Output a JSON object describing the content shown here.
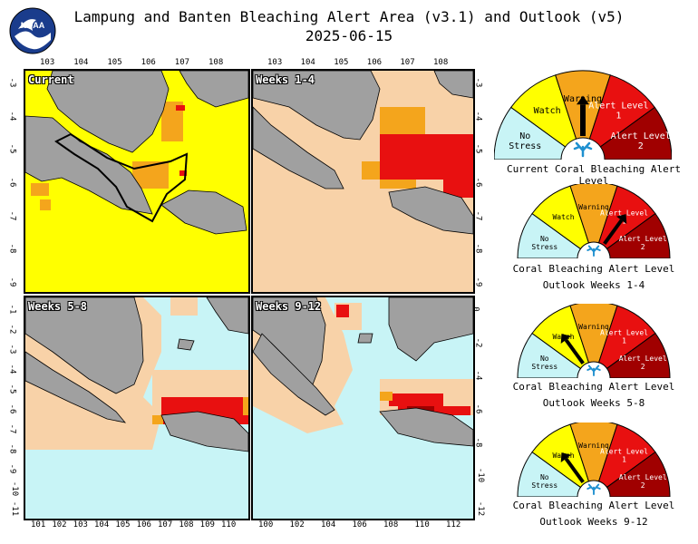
{
  "title_line1": "Lampung and Banten Bleaching Alert Area (v3.1) and Outlook (v5)",
  "title_line2": "2025-06-15",
  "logo_text": "NOAA",
  "colors": {
    "no_stress": "#c8f4f6",
    "watch": "#ffff00",
    "warning": "#f4a51c",
    "alert1": "#e81010",
    "alert2": "#a00000",
    "light_orange": "#f8d2a8",
    "land": "#a0a0a0",
    "coral_icon": "#1e90d0"
  },
  "panels": [
    {
      "id": "current",
      "label": "Current",
      "top_ticks": [
        "103",
        "104",
        "105",
        "106",
        "107",
        "108"
      ],
      "left_ticks": [
        "-3",
        "-4",
        "-5",
        "-6",
        "-7",
        "-8",
        "-9"
      ]
    },
    {
      "id": "weeks1-4",
      "label": "Weeks 1-4",
      "top_ticks": [
        "103",
        "104",
        "105",
        "106",
        "107",
        "108"
      ],
      "right_ticks": [
        "-3",
        "-4",
        "-5",
        "-6",
        "-7",
        "-8",
        "-9"
      ]
    },
    {
      "id": "weeks5-8",
      "label": "Weeks 5-8",
      "bottom_ticks": [
        "101",
        "102",
        "103",
        "104",
        "105",
        "106",
        "107",
        "108",
        "109",
        "110"
      ],
      "left_ticks": [
        "-1",
        "-2",
        "-3",
        "-4",
        "-5",
        "-6",
        "-7",
        "-8",
        "-9",
        "-10",
        "-11"
      ]
    },
    {
      "id": "weeks9-12",
      "label": "Weeks 9-12",
      "bottom_ticks": [
        "100",
        "102",
        "104",
        "106",
        "108",
        "110",
        "112"
      ],
      "right_ticks": [
        "0",
        "-2",
        "-4",
        "-6",
        "-8",
        "-10",
        "-12"
      ]
    }
  ],
  "gauge_levels": [
    "No Stress",
    "Watch",
    "Warning",
    "Alert Level 1",
    "Alert Level 2"
  ],
  "gauges": [
    {
      "caption1": "Current Coral Bleaching Alert Level",
      "caption2": "",
      "level": "Warning"
    },
    {
      "caption1": "Coral Bleaching Alert Level",
      "caption2": "Outlook Weeks 1-4",
      "level": "Alert Level 1"
    },
    {
      "caption1": "Coral Bleaching Alert Level",
      "caption2": "Outlook Weeks 5-8",
      "level": "Watch"
    },
    {
      "caption1": "Coral Bleaching Alert Level",
      "caption2": "Outlook Weeks 9-12",
      "level": "Watch"
    }
  ]
}
